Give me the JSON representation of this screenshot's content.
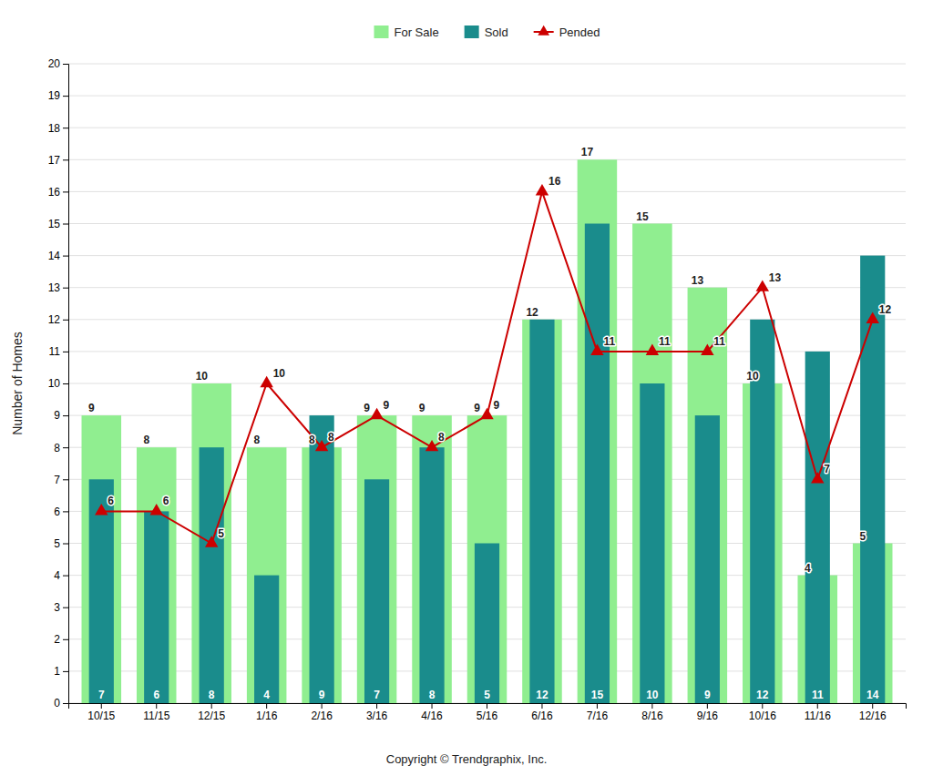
{
  "chart_data": {
    "type": "bar",
    "categories": [
      "10/15",
      "11/15",
      "12/15",
      "1/16",
      "2/16",
      "3/16",
      "4/16",
      "5/16",
      "6/16",
      "7/16",
      "8/16",
      "9/16",
      "10/16",
      "11/16",
      "12/16"
    ],
    "series": [
      {
        "name": "For Sale",
        "type": "bar",
        "color": "#90EE90",
        "values": [
          9,
          8,
          10,
          8,
          8,
          9,
          9,
          9,
          12,
          17,
          15,
          13,
          10,
          4,
          5
        ]
      },
      {
        "name": "Sold",
        "type": "bar",
        "color": "#1a8c8c",
        "values": [
          7,
          6,
          8,
          4,
          9,
          7,
          8,
          5,
          12,
          15,
          10,
          9,
          12,
          11,
          14
        ]
      },
      {
        "name": "Pended",
        "type": "line",
        "color": "#CC0000",
        "marker": "triangle",
        "values": [
          6,
          6,
          5,
          10,
          8,
          9,
          8,
          9,
          16,
          11,
          11,
          11,
          13,
          7,
          12
        ]
      }
    ],
    "ylabel": "Number of Homes",
    "annotations": [
      "Copyright © Trendgraphix, Inc."
    ],
    "ylim": [
      0,
      20
    ],
    "yticks": [
      0,
      1,
      2,
      3,
      4,
      5,
      6,
      7,
      8,
      9,
      10,
      11,
      12,
      13,
      14,
      15,
      16,
      17,
      18,
      19,
      20
    ],
    "grid": true,
    "legend": "top",
    "data_labels": true
  }
}
